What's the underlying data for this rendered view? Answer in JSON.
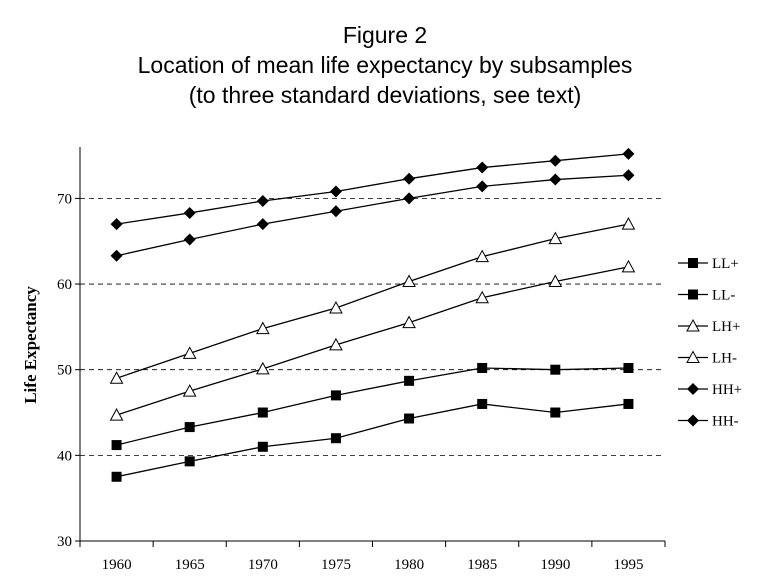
{
  "chart_data": {
    "type": "line",
    "title": "Figure 2",
    "subtitle": [
      "Location of mean life expectancy by subsamples",
      "(to three standard deviations, see text)"
    ],
    "y_label": "Life Expectancy",
    "categories": [
      "1960",
      "1965",
      "1970",
      "1975",
      "1980",
      "1985",
      "1990",
      "1995"
    ],
    "ylim": [
      30,
      76
    ],
    "yticks": [
      30,
      40,
      50,
      60,
      70
    ],
    "grid": true,
    "legend": "right",
    "series": [
      {
        "name": "LL+",
        "color": "#000000",
        "marker": "square",
        "values": [
          41.2,
          43.3,
          45,
          47,
          48.7,
          50.2,
          50,
          50.2
        ]
      },
      {
        "name": "LL-",
        "color": "#000000",
        "marker": "square",
        "values": [
          37.5,
          39.3,
          41,
          42,
          44.3,
          46,
          45,
          46
        ]
      },
      {
        "name": "LH+",
        "color": "#000000",
        "marker": "triangle",
        "values": [
          49,
          51.9,
          54.8,
          57.2,
          60.3,
          63.2,
          65.3,
          67
        ]
      },
      {
        "name": "LH-",
        "color": "#000000",
        "marker": "triangle",
        "values": [
          44.7,
          47.5,
          50.1,
          52.9,
          55.5,
          58.4,
          60.3,
          62
        ]
      },
      {
        "name": "HH+",
        "color": "#000000",
        "marker": "diamond",
        "values": [
          67,
          68.3,
          69.7,
          70.8,
          72.3,
          73.6,
          74.4,
          75.2
        ]
      },
      {
        "name": "HH-",
        "color": "#000000",
        "marker": "diamond",
        "values": [
          63.3,
          65.2,
          67,
          68.5,
          70,
          71.4,
          72.2,
          72.7
        ]
      }
    ]
  }
}
